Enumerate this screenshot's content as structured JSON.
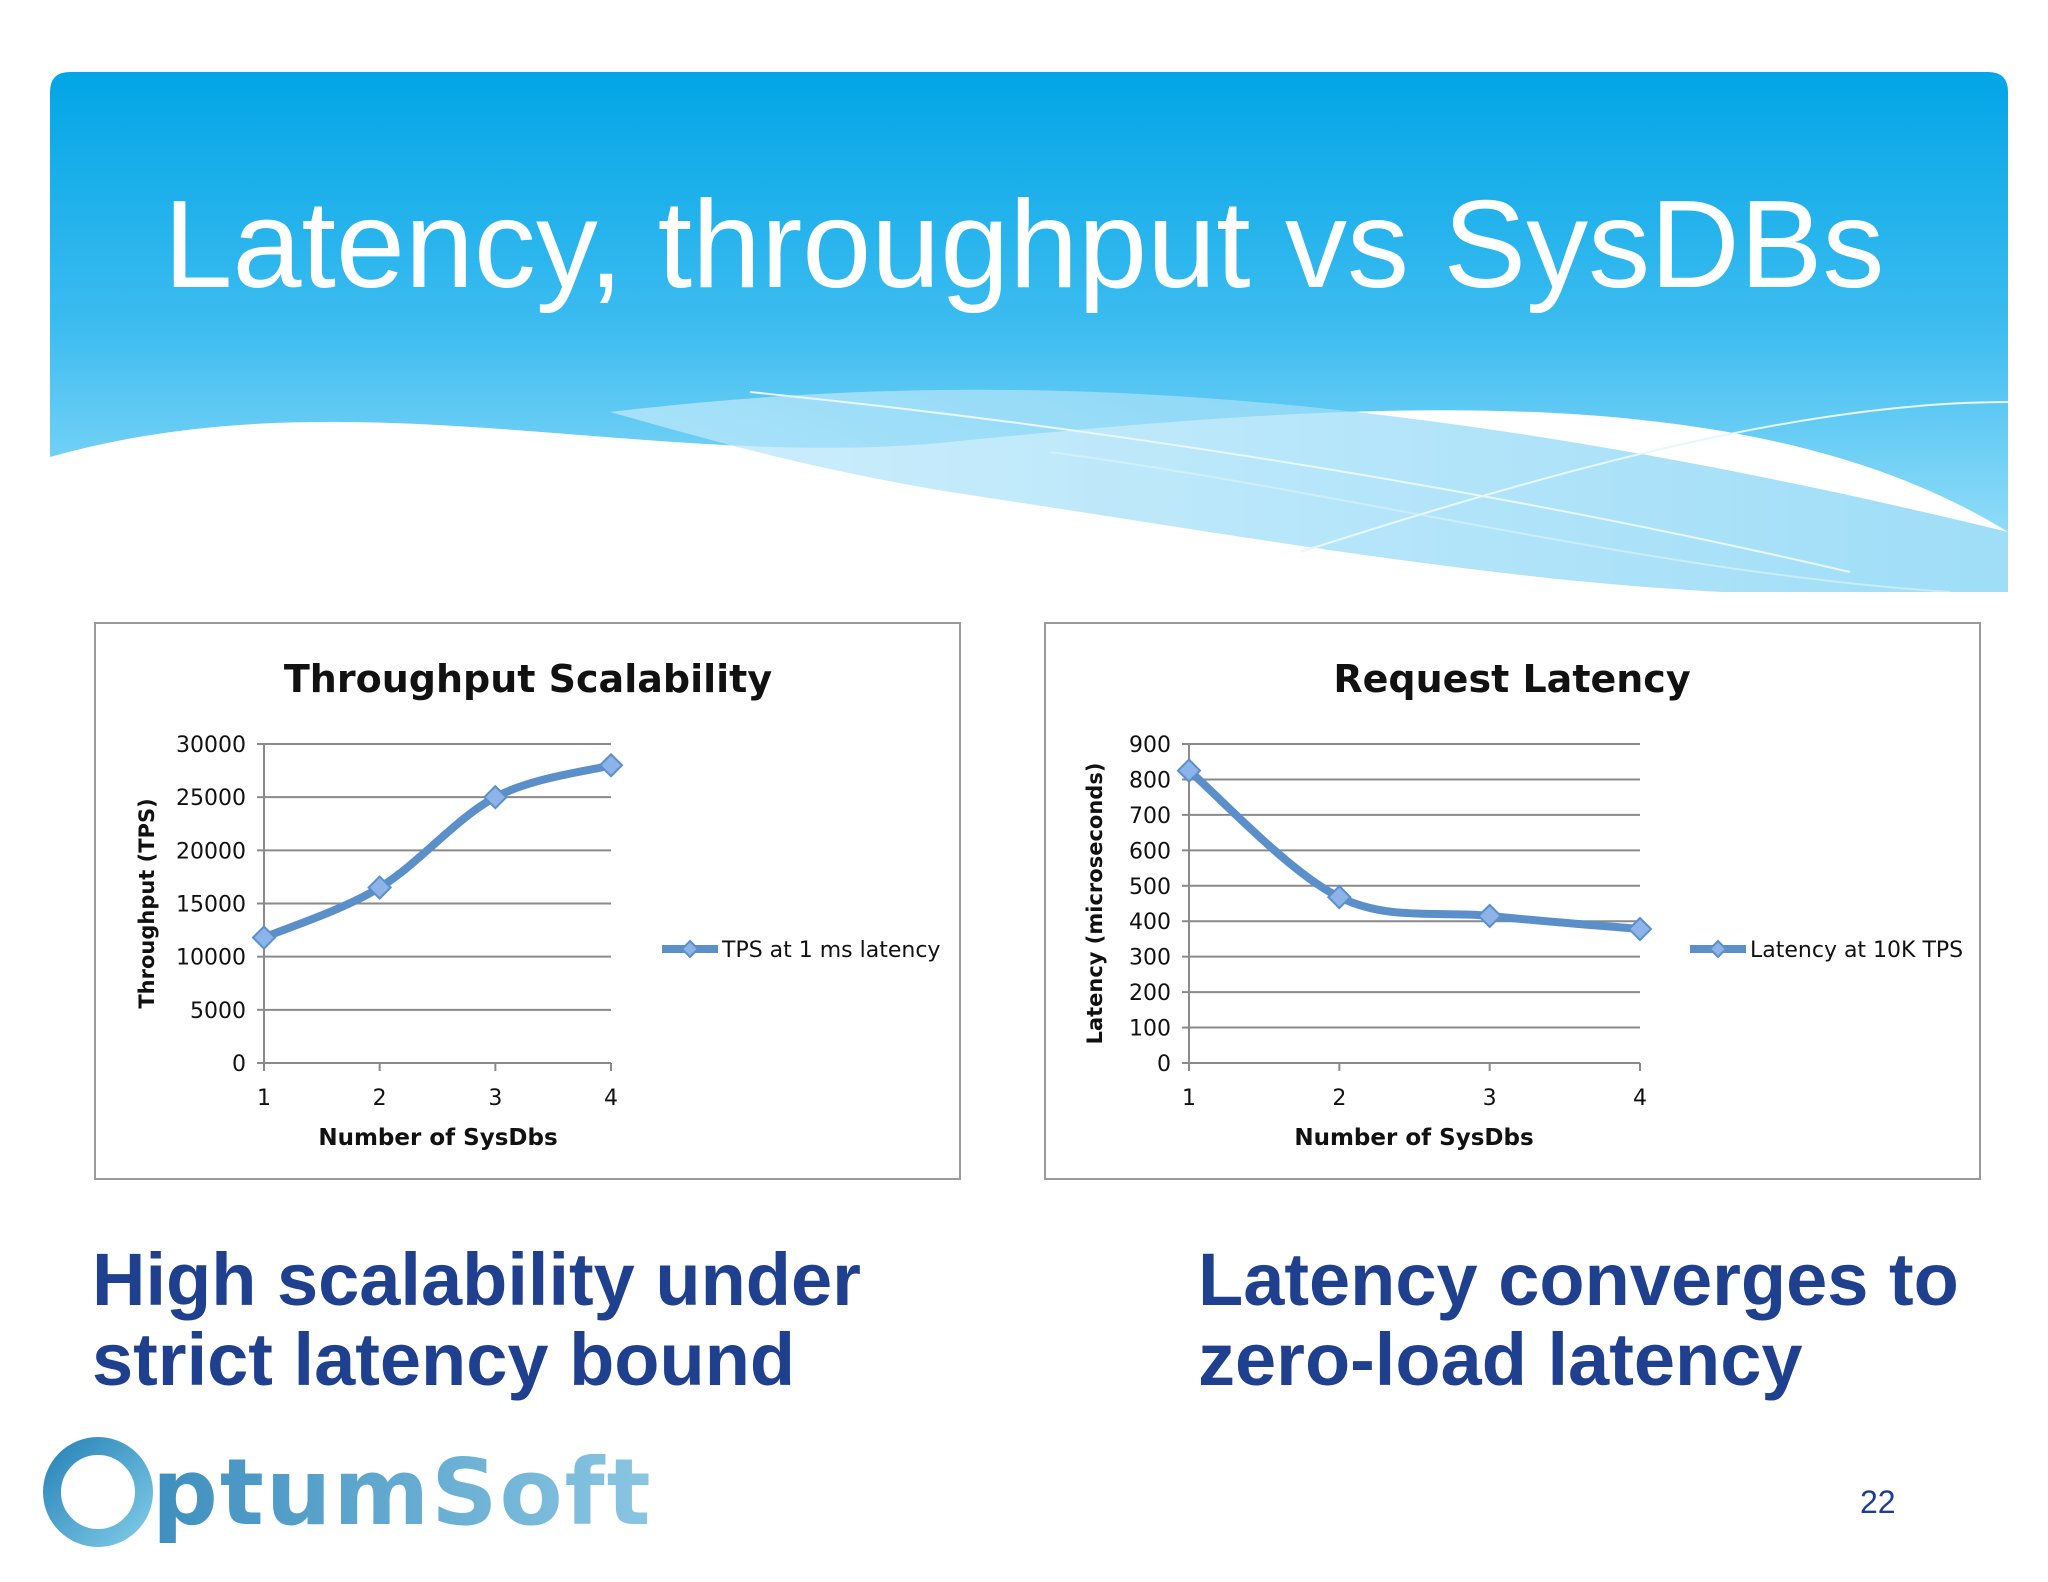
{
  "slide": {
    "title": "Latency, throughput vs SysDBs",
    "page_number": "22",
    "colors": {
      "banner_top": "#03a6e6",
      "banner_bottom": "#6ccff5",
      "caption": "#1f3f8f",
      "series": "#5b8fc9",
      "marker": "#8db4e8"
    }
  },
  "captions": {
    "left": {
      "line1": "High scalability under",
      "line2": "strict latency bound"
    },
    "right": {
      "line1": "Latency converges to",
      "line2": "zero-load latency"
    }
  },
  "logo": {
    "text": "OptumSoft"
  },
  "chart_data": [
    {
      "type": "line",
      "title": "Throughput Scalability",
      "xlabel": "Number of SysDbs",
      "ylabel": "Throughput (TPS)",
      "categories": [
        "1",
        "2",
        "3",
        "4"
      ],
      "ylim": [
        0,
        30000
      ],
      "yticks": [
        "0",
        "5000",
        "10000",
        "15000",
        "20000",
        "25000",
        "30000"
      ],
      "grid": true,
      "legend_position": "right",
      "series": [
        {
          "name": "TPS at 1 ms latency",
          "values": [
            11800,
            16500,
            25000,
            28000
          ]
        }
      ]
    },
    {
      "type": "line",
      "title": "Request Latency",
      "xlabel": "Number of SysDbs",
      "ylabel": "Latency (microseconds)",
      "categories": [
        "1",
        "2",
        "3",
        "4"
      ],
      "ylim": [
        0,
        900
      ],
      "yticks": [
        "0",
        "100",
        "200",
        "300",
        "400",
        "500",
        "600",
        "700",
        "800",
        "900"
      ],
      "grid": true,
      "legend_position": "right",
      "series": [
        {
          "name": "Latency at 10K TPS",
          "values": [
            825,
            468,
            415,
            378
          ]
        }
      ]
    }
  ]
}
